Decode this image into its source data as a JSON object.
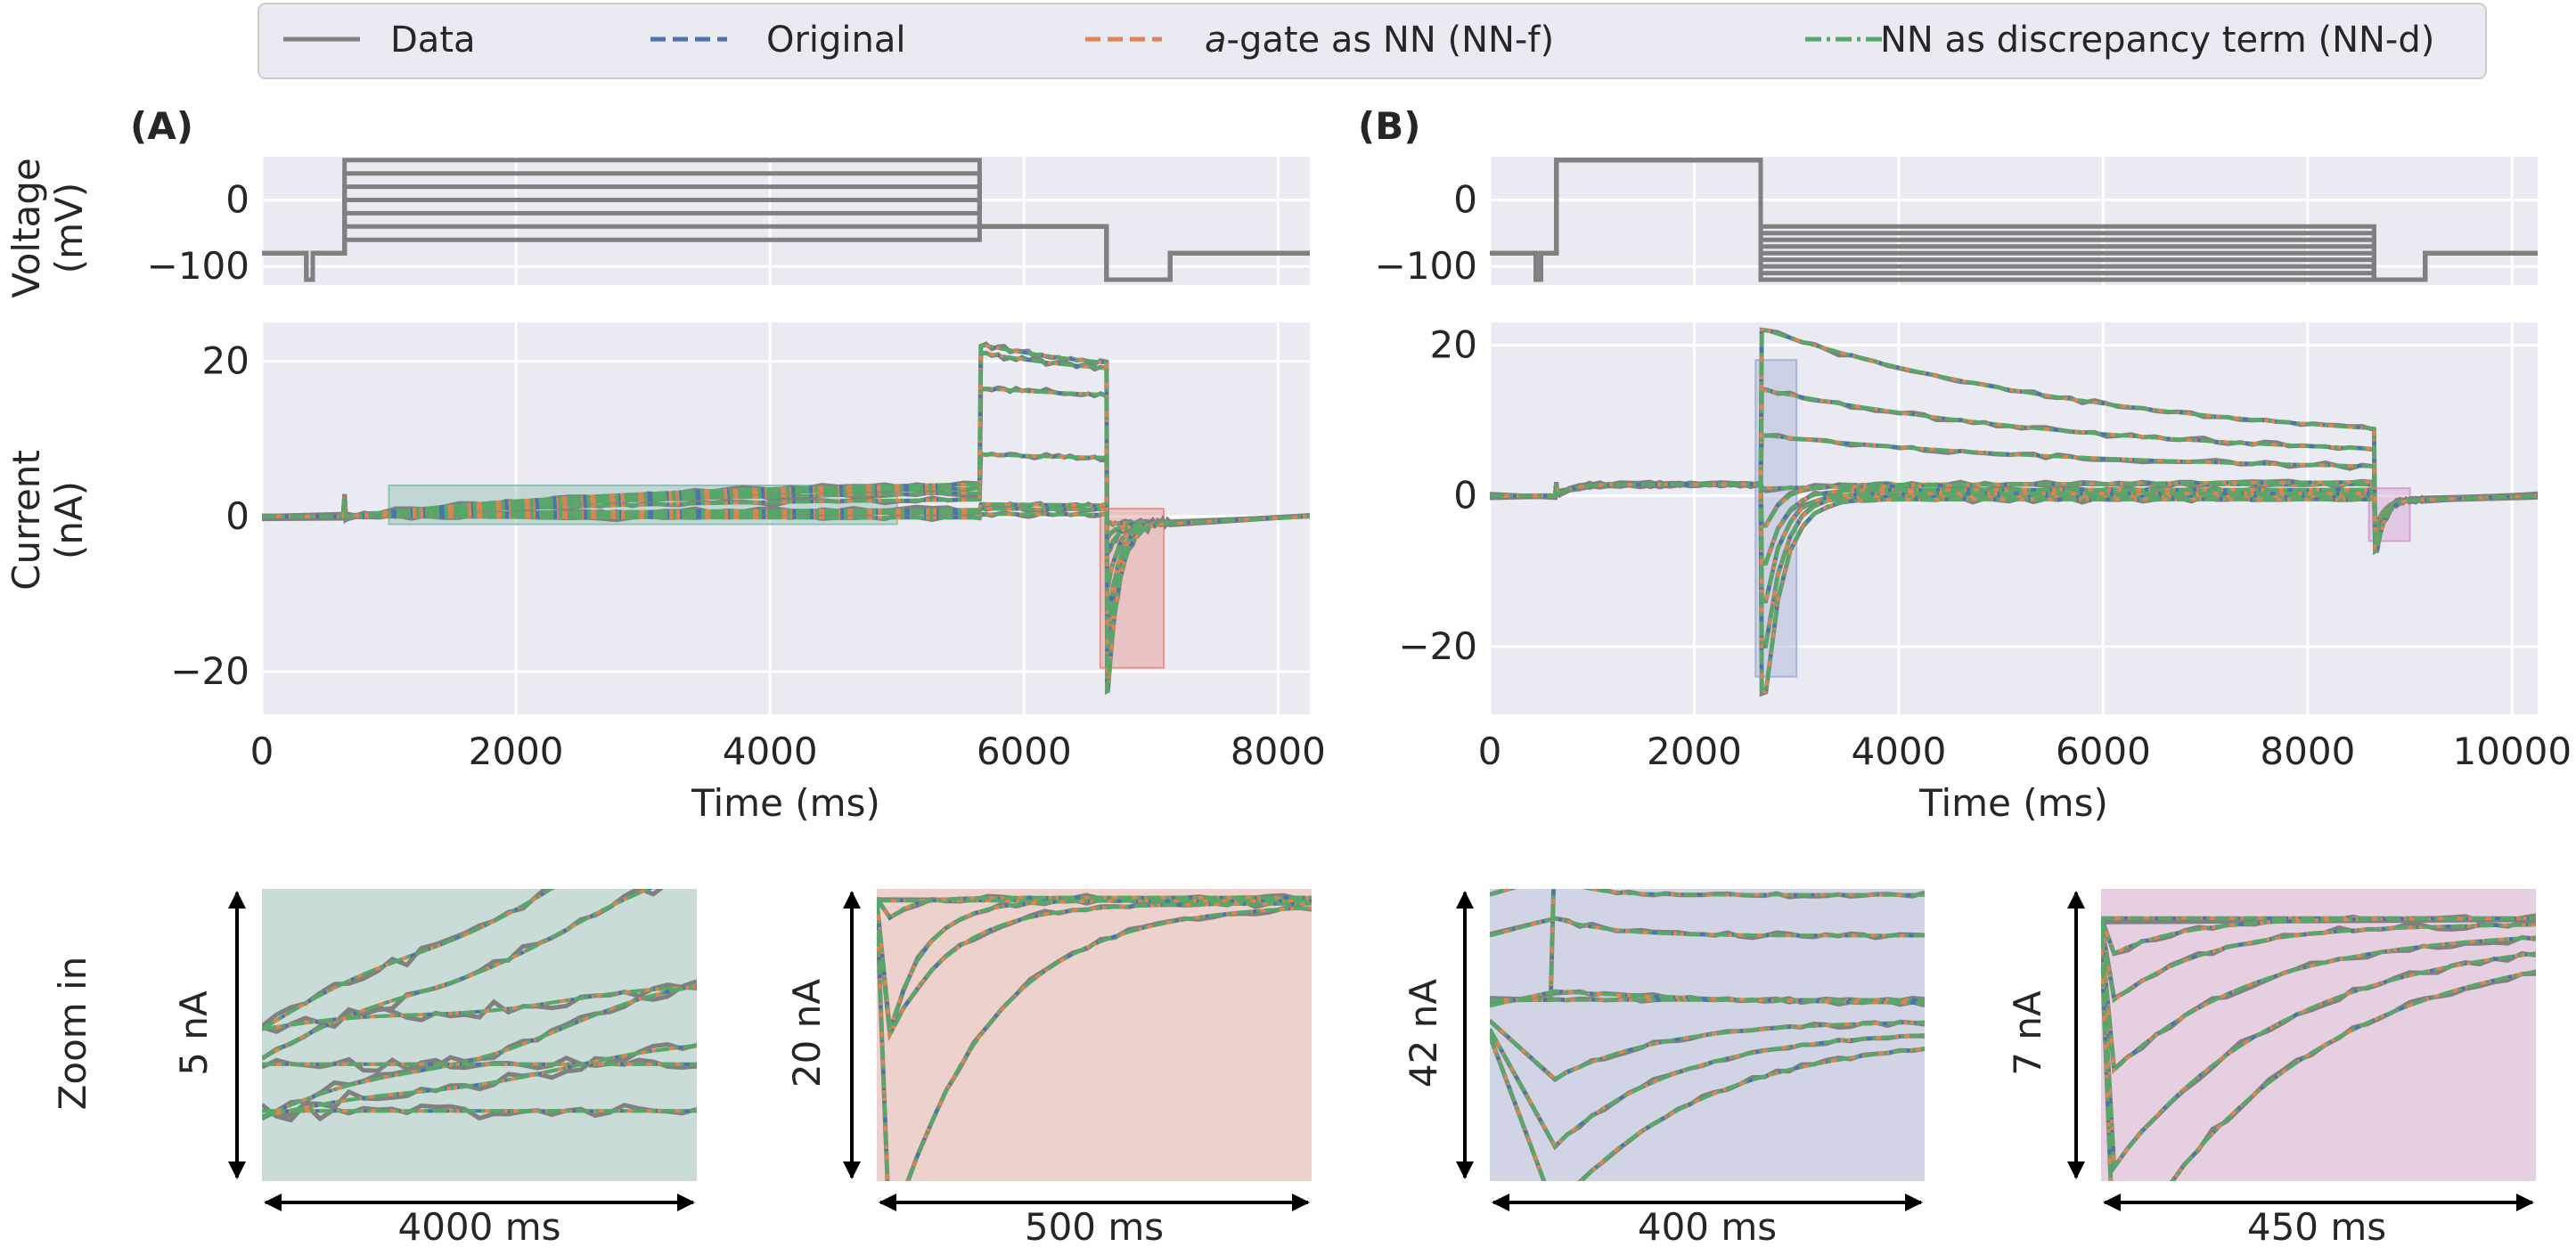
{
  "legend": {
    "entries": [
      {
        "label": "Data",
        "color": "#808080",
        "style": "solid"
      },
      {
        "label": "Original",
        "color": "#4c72b0",
        "style": "dashed"
      },
      {
        "label": "a-gate as NN (NN-f)",
        "label_italic": "a",
        "label_rest": "-gate as NN (NN-f)",
        "color": "#dd8452",
        "style": "dashed"
      },
      {
        "label": "NN as discrepancy term (NN-d)",
        "color": "#55a868",
        "style": "dashdot"
      }
    ]
  },
  "row_labels": {
    "voltage": [
      "Voltage",
      "(mV)"
    ],
    "current": [
      "Current",
      "(nA)"
    ],
    "zoom": "Zoom in"
  },
  "chart_data": [
    {
      "panel": "(A)",
      "type": "line",
      "xlabel": "Time (ms)",
      "xlim": [
        0,
        8250
      ],
      "xticks": [
        0,
        2000,
        4000,
        6000,
        8000
      ],
      "voltage": {
        "ylim": [
          -128,
          65
        ],
        "yticks": [
          0,
          -100
        ],
        "ytick_labels": [
          "0",
          "−100"
        ],
        "holding": -80,
        "prepulse": {
          "t": [
            350,
            400
          ],
          "v": -120
        },
        "step": {
          "t": [
            650,
            5650
          ],
          "levels": [
            -60,
            -40,
            -20,
            0,
            20,
            40,
            60
          ]
        },
        "after_step": {
          "t": [
            5650,
            6650
          ],
          "v": -40
        },
        "tail": {
          "t": [
            6650,
            7150
          ],
          "v": -120
        },
        "end_t": 8250
      },
      "current": {
        "ylim": [
          -25.5,
          25
        ],
        "yticks": [
          20,
          0,
          -20
        ],
        "ytick_labels": [
          "20",
          "0",
          "−20"
        ],
        "step_plateau": [
          -0.2,
          0.5,
          1.0,
          2.5,
          3.5,
          4.2,
          4.8
        ],
        "after_step_peak": [
          0.3,
          1.0,
          1.6,
          8.0,
          16.5,
          21.0,
          22.0
        ],
        "after_step_end": [
          0.2,
          0.8,
          1.3,
          7.2,
          15.0,
          17.5,
          18.0
        ],
        "tail_peak": [
          -1.0,
          -2.5,
          -4.5,
          -9.0,
          -14.0,
          -19.5,
          -22.5
        ]
      },
      "highlights": [
        {
          "x": [
            1000,
            5000
          ],
          "y": [
            -1,
            4
          ],
          "color": "#8fc1b4"
        },
        {
          "x": [
            6600,
            7100
          ],
          "y": [
            -19.5,
            1
          ],
          "color": "#e8948a"
        }
      ]
    },
    {
      "panel": "(B)",
      "type": "line",
      "xlabel": "Time (ms)",
      "xlim": [
        0,
        10250
      ],
      "xticks": [
        0,
        2000,
        4000,
        6000,
        8000,
        10000
      ],
      "voltage": {
        "ylim": [
          -128,
          65
        ],
        "yticks": [
          0,
          -100
        ],
        "ytick_labels": [
          "0",
          "−100"
        ],
        "holding": -80,
        "prepulse": {
          "t": [
            450,
            500
          ],
          "v": -120
        },
        "step": {
          "t": [
            650,
            2650
          ],
          "v": 60
        },
        "tail": {
          "t": [
            2650,
            8650
          ],
          "levels": [
            -120,
            -110,
            -100,
            -90,
            -80,
            -70,
            -60,
            -50,
            -40
          ]
        },
        "after_tail": {
          "t": [
            8650,
            9150
          ],
          "v": -120
        },
        "end_t": 10250
      },
      "current": {
        "ylim": [
          -29,
          23
        ],
        "yticks": [
          20,
          0,
          -20
        ],
        "ytick_labels": [
          "20",
          "0",
          "−20"
        ],
        "step_plateau": 1.5,
        "tail_peak": [
          -26,
          -20,
          -14,
          -9,
          -4,
          1,
          8,
          14,
          22
        ],
        "tail_end": [
          -0.5,
          0.0,
          0.3,
          0.8,
          1.5,
          2.0,
          3.0,
          4.5,
          6.0
        ],
        "final_dip": -7.5
      },
      "highlights": [
        {
          "x": [
            2600,
            3000
          ],
          "y": [
            -24,
            18
          ],
          "color": "#a8b4d8"
        },
        {
          "x": [
            8600,
            9000
          ],
          "y": [
            -6,
            1
          ],
          "color": "#d8a0d0"
        }
      ]
    }
  ],
  "zoom_panels": [
    {
      "id": "zoomA1",
      "scale_y": "5 nA",
      "scale_x": "4000 ms",
      "bg": "#c9dcd8"
    },
    {
      "id": "zoomA2",
      "scale_y": "20 nA",
      "scale_x": "500 ms",
      "bg": "#ecd1cc"
    },
    {
      "id": "zoomB1",
      "scale_y": "42 nA",
      "scale_x": "400 ms",
      "bg": "#d0d4e4"
    },
    {
      "id": "zoomB2",
      "scale_y": "7 nA",
      "scale_x": "450 ms",
      "bg": "#e7cfe2"
    }
  ]
}
